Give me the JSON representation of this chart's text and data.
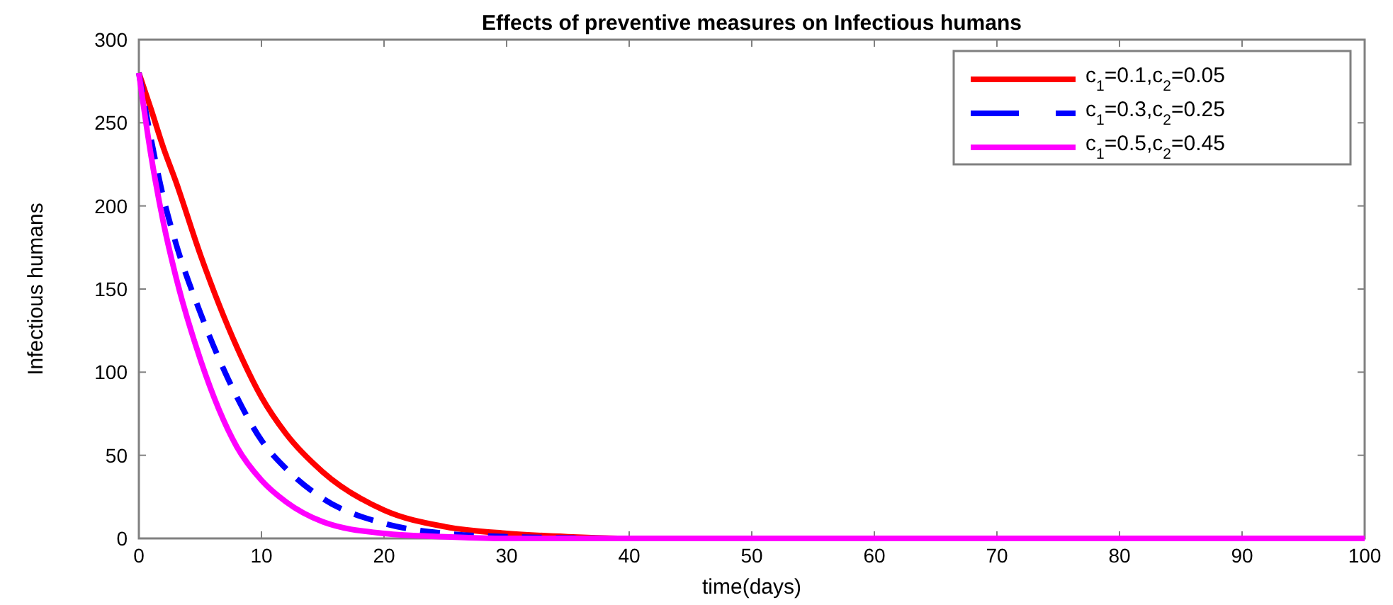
{
  "chart_data": {
    "type": "line",
    "title": "Effects of preventive measures on Infectious humans",
    "xlabel": "time(days)",
    "ylabel": "Infectious humans",
    "xlim": [
      0,
      100
    ],
    "xticks": [
      0,
      10,
      20,
      30,
      40,
      50,
      60,
      70,
      80,
      90,
      100
    ],
    "ylim": [
      0,
      300
    ],
    "yticks": [
      0,
      50,
      100,
      150,
      200,
      250,
      300
    ],
    "legend": "top right",
    "grid": false,
    "series": [
      {
        "name": "c$_{1}$=0.1,c$_{2}$=0.05",
        "color": "#ff0000",
        "line_style": "solid",
        "x": [
          0,
          1,
          2,
          3,
          5,
          8,
          10,
          12,
          15,
          20,
          25,
          30,
          35,
          40,
          50
        ],
        "values": [
          280,
          258,
          235,
          215,
          171,
          115,
          85,
          63,
          40,
          17,
          7,
          3,
          1,
          0,
          0
        ]
      },
      {
        "name": "c$_{1}$=0.3,c$_{2}$=0.25",
        "color": "#0000ff",
        "line_style": "dashed",
        "x": [
          0,
          1,
          2,
          3,
          5,
          8,
          10,
          12,
          15,
          20,
          25,
          30,
          40,
          50
        ],
        "values": [
          280,
          240,
          205,
          178,
          136,
          85,
          59,
          42,
          24,
          9,
          3,
          1,
          0,
          0
        ]
      },
      {
        "name": "c$_{1}$=0.5,c$_{2}$=0.45",
        "color": "#ff00ff",
        "line_style": "solid",
        "x": [
          0,
          1,
          2,
          3,
          5,
          8,
          10,
          12,
          15,
          20,
          25,
          30,
          40,
          50,
          60,
          100
        ],
        "values": [
          280,
          230,
          190,
          158,
          108,
          55,
          35,
          22,
          10,
          3,
          1,
          0,
          0,
          0,
          0,
          0
        ]
      }
    ]
  }
}
